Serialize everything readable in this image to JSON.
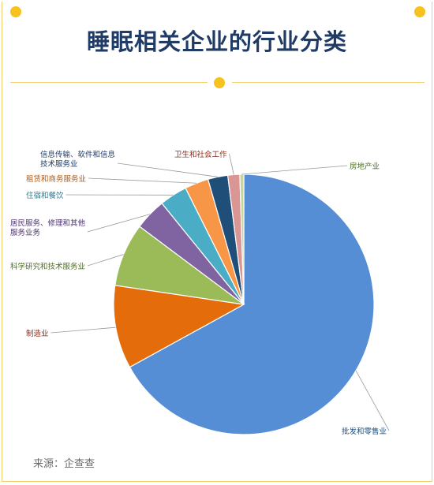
{
  "header": {
    "title": "睡眠相关企业的行业分类"
  },
  "footer": {
    "source": "来源：企查查"
  },
  "colors": {
    "accent_yellow": "#f7c21e",
    "title_blue": "#1f3b66"
  },
  "chart_data": {
    "type": "pie",
    "title": "睡眠相关企业的行业分类",
    "legend": "none",
    "slices": [
      {
        "label": "批发和零售业",
        "lines": [
          "批发和零售业"
        ],
        "value": 68.0,
        "color": "#558ed5",
        "label_color": "#1f4e79"
      },
      {
        "label": "制造业",
        "lines": [
          "制造业"
        ],
        "value": 10.5,
        "color": "#e46c0a",
        "label_color": "#8b2e1e"
      },
      {
        "label": "科学研究和技术服务业",
        "lines": [
          "科学研究和技术服务业"
        ],
        "value": 8.0,
        "color": "#9bbb59",
        "label_color": "#4f6e2a"
      },
      {
        "label": "居民服务、修理和其他服务业务",
        "lines": [
          "居民服务、修理和其他",
          "服务业务"
        ],
        "value": 4.0,
        "color": "#8064a2",
        "label_color": "#4b3470"
      },
      {
        "label": "住宿和餐饮",
        "lines": [
          "住宿和餐饮"
        ],
        "value": 3.5,
        "color": "#4bacc6",
        "label_color": "#2e7a8f"
      },
      {
        "label": "租赁和商务服务业",
        "lines": [
          "租赁和商务服务业"
        ],
        "value": 3.0,
        "color": "#f79646",
        "label_color": "#b35a12"
      },
      {
        "label": "信息传输、软件和信息技术服务业",
        "lines": [
          "信息传输、软件和信息",
          "技术服务业"
        ],
        "value": 2.5,
        "color": "#1f4e79",
        "label_color": "#1f3b66"
      },
      {
        "label": "卫生和社会工作",
        "lines": [
          "卫生和社会工作"
        ],
        "value": 1.5,
        "color": "#d99694",
        "label_color": "#8b2e1e"
      },
      {
        "label": "房地产业",
        "lines": [
          "房地产业"
        ],
        "value": 0.5,
        "color": "#c4d79b",
        "label_color": "#4f6e2a"
      }
    ]
  }
}
